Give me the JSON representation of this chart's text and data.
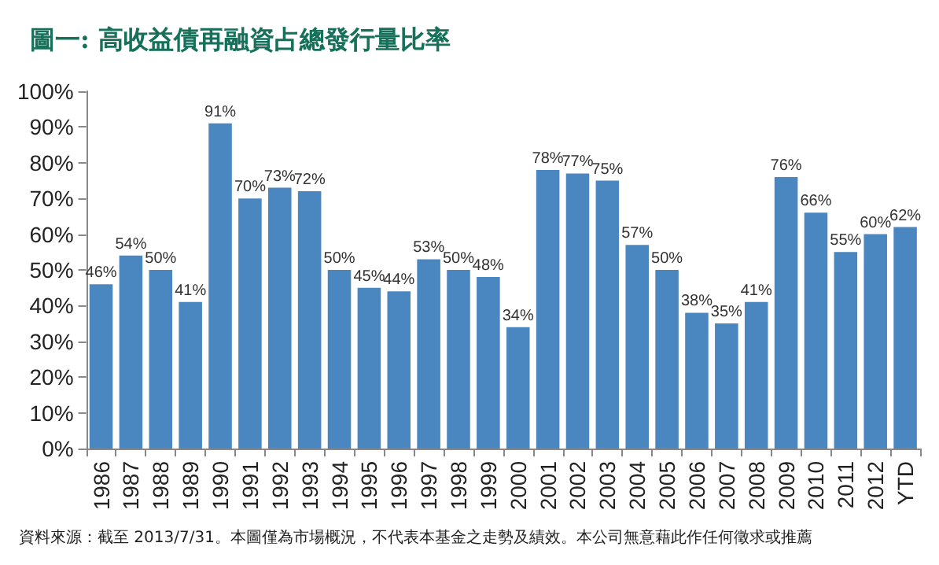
{
  "chart_data": {
    "type": "bar",
    "title": "圖一: 高收益債再融資占總發行量比率",
    "categories": [
      "1986",
      "1987",
      "1988",
      "1989",
      "1990",
      "1991",
      "1992",
      "1993",
      "1994",
      "1995",
      "1996",
      "1997",
      "1998",
      "1999",
      "2000",
      "2001",
      "2002",
      "2003",
      "2004",
      "2005",
      "2006",
      "2007",
      "2008",
      "2009",
      "2010",
      "2011",
      "2012",
      "YTD"
    ],
    "values": [
      46,
      54,
      50,
      41,
      91,
      70,
      73,
      72,
      50,
      45,
      44,
      53,
      50,
      48,
      34,
      78,
      77,
      75,
      57,
      50,
      38,
      35,
      41,
      76,
      66,
      55,
      60,
      62
    ],
    "value_labels": [
      "46%",
      "54%",
      "50%",
      "41%",
      "91%",
      "70%",
      "73%",
      "72%",
      "50%",
      "45%",
      "44%",
      "53%",
      "50%",
      "48%",
      "34%",
      "78%",
      "77%",
      "75%",
      "57%",
      "50%",
      "38%",
      "35%",
      "41%",
      "76%",
      "66%",
      "55%",
      "60%",
      "62%"
    ],
    "color": "#4a86c0",
    "ylim": [
      0,
      100
    ],
    "yticks": [
      {
        "value": 0,
        "label": "0%"
      },
      {
        "value": 10,
        "label": "10%"
      },
      {
        "value": 20,
        "label": "20%"
      },
      {
        "value": 30,
        "label": "30%"
      },
      {
        "value": 40,
        "label": "40%"
      },
      {
        "value": 50,
        "label": "50%"
      },
      {
        "value": 60,
        "label": "60%"
      },
      {
        "value": 70,
        "label": "70%"
      },
      {
        "value": 80,
        "label": "80%"
      },
      {
        "value": 90,
        "label": "90%"
      },
      {
        "value": 100,
        "label": "100%"
      }
    ],
    "grid": false,
    "annotations": [
      "資料來源：截至 2013/7/31。",
      "本圖僅為市場概況，不代表本基金之走勢及績效。本公司無意藉此作任何徵求或推薦"
    ]
  }
}
